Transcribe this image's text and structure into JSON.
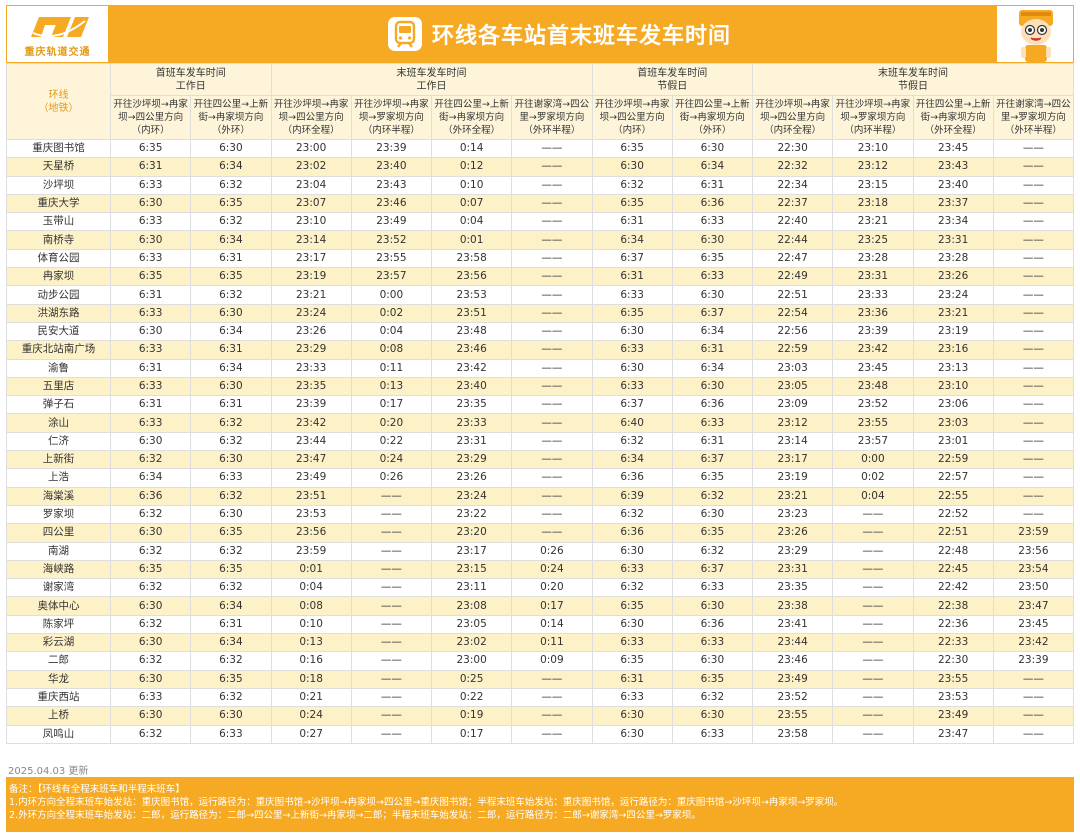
{
  "header": {
    "logo_text": "重庆轨道交通",
    "title": "环线各车站首末班车发车时间"
  },
  "table": {
    "station_header": [
      "环线",
      "（地铁）"
    ],
    "group_headers": [
      {
        "line1": "首班车发车时间",
        "line2": "工作日",
        "span": 2
      },
      {
        "line1": "末班车发车时间",
        "line2": "工作日",
        "span": 4
      },
      {
        "line1": "首班车发车时间",
        "line2": "节假日",
        "span": 2
      },
      {
        "line1": "末班车发车时间",
        "line2": "节假日",
        "span": 4
      }
    ],
    "column_headers": [
      [
        "开往沙坪坝→冉家",
        "坝→四公里方向",
        "（内环）"
      ],
      [
        "开往四公里→上新",
        "街→冉家坝方向",
        "（外环）"
      ],
      [
        "开往沙坪坝→冉家",
        "坝→四公里方向",
        "（内环全程）"
      ],
      [
        "开往沙坪坝→冉家",
        "坝→罗家坝方向",
        "（内环半程）"
      ],
      [
        "开往四公里→上新",
        "街→冉家坝方向",
        "（外环全程）"
      ],
      [
        "开往谢家湾→四公",
        "里→罗家坝方向",
        "（外环半程）"
      ],
      [
        "开往沙坪坝→冉家",
        "坝→四公里方向",
        "（内环）"
      ],
      [
        "开往四公里→上新",
        "街→冉家坝方向",
        "（外环）"
      ],
      [
        "开往沙坪坝→冉家",
        "坝→四公里方向",
        "（内环全程）"
      ],
      [
        "开往沙坪坝→冉家",
        "坝→罗家坝方向",
        "（内环半程）"
      ],
      [
        "开往四公里→上新",
        "街→冉家坝方向",
        "（外环全程）"
      ],
      [
        "开往谢家湾→四公",
        "里→罗家坝方向",
        "（外环半程）"
      ]
    ],
    "rows": [
      [
        "重庆图书馆",
        "6:35",
        "6:30",
        "23:00",
        "23:39",
        "0:14",
        "——",
        "6:35",
        "6:30",
        "22:30",
        "23:10",
        "23:45",
        "——"
      ],
      [
        "天星桥",
        "6:31",
        "6:34",
        "23:02",
        "23:40",
        "0:12",
        "——",
        "6:30",
        "6:34",
        "22:32",
        "23:12",
        "23:43",
        "——"
      ],
      [
        "沙坪坝",
        "6:33",
        "6:32",
        "23:04",
        "23:43",
        "0:10",
        "——",
        "6:32",
        "6:31",
        "22:34",
        "23:15",
        "23:40",
        "——"
      ],
      [
        "重庆大学",
        "6:30",
        "6:35",
        "23:07",
        "23:46",
        "0:07",
        "——",
        "6:35",
        "6:36",
        "22:37",
        "23:18",
        "23:37",
        "——"
      ],
      [
        "玉带山",
        "6:33",
        "6:32",
        "23:10",
        "23:49",
        "0:04",
        "——",
        "6:31",
        "6:33",
        "22:40",
        "23:21",
        "23:34",
        "——"
      ],
      [
        "南桥寺",
        "6:30",
        "6:34",
        "23:14",
        "23:52",
        "0:01",
        "——",
        "6:34",
        "6:30",
        "22:44",
        "23:25",
        "23:31",
        "——"
      ],
      [
        "体育公园",
        "6:33",
        "6:31",
        "23:17",
        "23:55",
        "23:58",
        "——",
        "6:37",
        "6:35",
        "22:47",
        "23:28",
        "23:28",
        "——"
      ],
      [
        "冉家坝",
        "6:35",
        "6:35",
        "23:19",
        "23:57",
        "23:56",
        "——",
        "6:31",
        "6:33",
        "22:49",
        "23:31",
        "23:26",
        "——"
      ],
      [
        "动步公园",
        "6:31",
        "6:32",
        "23:21",
        "0:00",
        "23:53",
        "——",
        "6:33",
        "6:30",
        "22:51",
        "23:33",
        "23:24",
        "——"
      ],
      [
        "洪湖东路",
        "6:33",
        "6:30",
        "23:24",
        "0:02",
        "23:51",
        "——",
        "6:35",
        "6:37",
        "22:54",
        "23:36",
        "23:21",
        "——"
      ],
      [
        "民安大道",
        "6:30",
        "6:34",
        "23:26",
        "0:04",
        "23:48",
        "——",
        "6:30",
        "6:34",
        "22:56",
        "23:39",
        "23:19",
        "——"
      ],
      [
        "重庆北站南广场",
        "6:33",
        "6:31",
        "23:29",
        "0:08",
        "23:46",
        "——",
        "6:33",
        "6:31",
        "22:59",
        "23:42",
        "23:16",
        "——"
      ],
      [
        "渝鲁",
        "6:31",
        "6:34",
        "23:33",
        "0:11",
        "23:42",
        "——",
        "6:30",
        "6:34",
        "23:03",
        "23:45",
        "23:13",
        "——"
      ],
      [
        "五里店",
        "6:33",
        "6:30",
        "23:35",
        "0:13",
        "23:40",
        "——",
        "6:33",
        "6:30",
        "23:05",
        "23:48",
        "23:10",
        "——"
      ],
      [
        "弹子石",
        "6:31",
        "6:31",
        "23:39",
        "0:17",
        "23:35",
        "——",
        "6:37",
        "6:36",
        "23:09",
        "23:52",
        "23:06",
        "——"
      ],
      [
        "涂山",
        "6:33",
        "6:32",
        "23:42",
        "0:20",
        "23:33",
        "——",
        "6:40",
        "6:33",
        "23:12",
        "23:55",
        "23:03",
        "——"
      ],
      [
        "仁济",
        "6:30",
        "6:32",
        "23:44",
        "0:22",
        "23:31",
        "——",
        "6:32",
        "6:31",
        "23:14",
        "23:57",
        "23:01",
        "——"
      ],
      [
        "上新街",
        "6:32",
        "6:30",
        "23:47",
        "0:24",
        "23:29",
        "——",
        "6:34",
        "6:37",
        "23:17",
        "0:00",
        "22:59",
        "——"
      ],
      [
        "上浩",
        "6:34",
        "6:33",
        "23:49",
        "0:26",
        "23:26",
        "——",
        "6:36",
        "6:35",
        "23:19",
        "0:02",
        "22:57",
        "——"
      ],
      [
        "海棠溪",
        "6:36",
        "6:32",
        "23:51",
        "——",
        "23:24",
        "——",
        "6:39",
        "6:32",
        "23:21",
        "0:04",
        "22:55",
        "——"
      ],
      [
        "罗家坝",
        "6:32",
        "6:30",
        "23:53",
        "——",
        "23:22",
        "——",
        "6:32",
        "6:30",
        "23:23",
        "——",
        "22:52",
        "——"
      ],
      [
        "四公里",
        "6:30",
        "6:35",
        "23:56",
        "——",
        "23:20",
        "——",
        "6:36",
        "6:35",
        "23:26",
        "——",
        "22:51",
        "23:59"
      ],
      [
        "南湖",
        "6:32",
        "6:32",
        "23:59",
        "——",
        "23:17",
        "0:26",
        "6:30",
        "6:32",
        "23:29",
        "——",
        "22:48",
        "23:56"
      ],
      [
        "海峡路",
        "6:35",
        "6:35",
        "0:01",
        "——",
        "23:15",
        "0:24",
        "6:33",
        "6:37",
        "23:31",
        "——",
        "22:45",
        "23:54"
      ],
      [
        "谢家湾",
        "6:32",
        "6:32",
        "0:04",
        "——",
        "23:11",
        "0:20",
        "6:32",
        "6:33",
        "23:35",
        "——",
        "22:42",
        "23:50"
      ],
      [
        "奥体中心",
        "6:30",
        "6:34",
        "0:08",
        "——",
        "23:08",
        "0:17",
        "6:35",
        "6:30",
        "23:38",
        "——",
        "22:38",
        "23:47"
      ],
      [
        "陈家坪",
        "6:32",
        "6:31",
        "0:10",
        "——",
        "23:05",
        "0:14",
        "6:30",
        "6:36",
        "23:41",
        "——",
        "22:36",
        "23:45"
      ],
      [
        "彩云湖",
        "6:30",
        "6:34",
        "0:13",
        "——",
        "23:02",
        "0:11",
        "6:33",
        "6:33",
        "23:44",
        "——",
        "22:33",
        "23:42"
      ],
      [
        "二郎",
        "6:32",
        "6:32",
        "0:16",
        "——",
        "23:00",
        "0:09",
        "6:35",
        "6:30",
        "23:46",
        "——",
        "22:30",
        "23:39"
      ],
      [
        "华龙",
        "6:30",
        "6:35",
        "0:18",
        "——",
        "0:25",
        "——",
        "6:31",
        "6:35",
        "23:49",
        "——",
        "23:55",
        "——"
      ],
      [
        "重庆西站",
        "6:33",
        "6:32",
        "0:21",
        "——",
        "0:22",
        "——",
        "6:33",
        "6:32",
        "23:52",
        "——",
        "23:53",
        "——"
      ],
      [
        "上桥",
        "6:30",
        "6:30",
        "0:24",
        "——",
        "0:19",
        "——",
        "6:30",
        "6:30",
        "23:55",
        "——",
        "23:49",
        "——"
      ],
      [
        "凤鸣山",
        "6:32",
        "6:33",
        "0:27",
        "——",
        "0:17",
        "——",
        "6:30",
        "6:33",
        "23:58",
        "——",
        "23:47",
        "——"
      ]
    ]
  },
  "updated": "2025.04.03 更新",
  "notes": [
    "备注：【环线有全程末班车和半程末班车】",
    "1.内环方向全程末班车始发站：重庆图书馆，运行路径为：重庆图书馆→沙坪坝→冉家坝→四公里→重庆图书馆；半程末班车始发站：重庆图书馆，运行路径为：重庆图书馆→沙坪坝→冉家坝→罗家坝。",
    "2.外环方向全程末班车始发站：二郎，运行路径为：二郎→四公里→上新街→冉家坝→二郎；半程末班车始发站：二郎，运行路径为：二郎→谢家湾→四公里→罗家坝。"
  ],
  "colors": {
    "brand": "#f6aa23",
    "row_alt": "#fdf1c8",
    "header_bg": "#fdf4d9"
  },
  "icons": [
    "logo-icon",
    "metro-train-icon",
    "mascot-icon"
  ]
}
